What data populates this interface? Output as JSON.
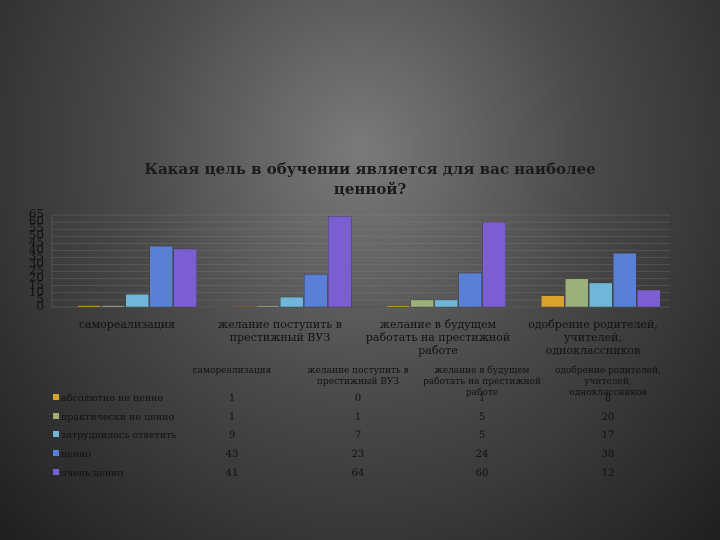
{
  "chart_data": {
    "type": "bar",
    "title_line1": "Какая цель в обучении является для вас наиболее",
    "title_line2": "ценной?",
    "categories": [
      "самореализация",
      "желание поступить в престижный ВУЗ",
      "желание в будущем работать на престижной работе",
      "одобрение родителей, учителей, одноклассников"
    ],
    "yticks": [
      "0",
      "5",
      "10",
      "15",
      "20",
      "25",
      "30",
      "35",
      "40",
      "45",
      "50",
      "55",
      "60",
      "65"
    ],
    "ylim": [
      0,
      65
    ],
    "series": [
      {
        "name": "абсолютно не ценно",
        "values": [
          1,
          0,
          1,
          8
        ],
        "color": "#d9a22a"
      },
      {
        "name": "практически не ценно",
        "values": [
          1,
          1,
          5,
          20
        ],
        "color": "#9bb07a"
      },
      {
        "name": "затруднилось ответить",
        "values": [
          9,
          7,
          5,
          17
        ],
        "color": "#6fb6d9"
      },
      {
        "name": "ценно",
        "values": [
          43,
          23,
          24,
          38
        ],
        "color": "#5a7fd6"
      },
      {
        "name": "очень ценно",
        "values": [
          41,
          64,
          60,
          12
        ],
        "color": "#7b5fd2"
      }
    ],
    "table_values": [
      [
        "1",
        "0",
        "1",
        "8"
      ],
      [
        "1",
        "1",
        "5",
        "20"
      ],
      [
        "9",
        "7",
        "5",
        "17"
      ],
      [
        "43",
        "23",
        "24",
        "38"
      ],
      [
        "41",
        "64",
        "60",
        "12"
      ]
    ],
    "legend": "data-table"
  }
}
